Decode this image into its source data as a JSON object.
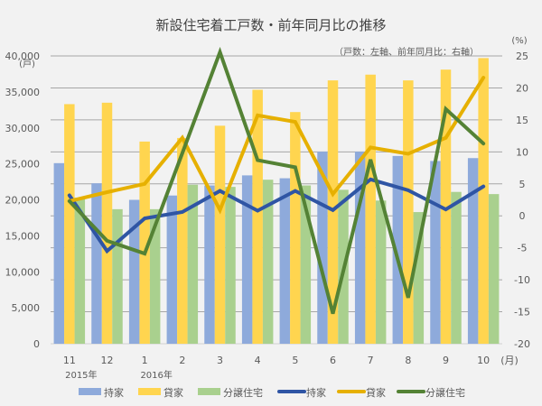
{
  "chart_data": {
    "type": "bar+line",
    "title": "新設住宅着工戸数・前年同月比の推移",
    "subtitle": "（戸数：左軸、前年同月比：右軸）",
    "ylabel_left": "(戸)",
    "ylabel_right": "(%)",
    "x_unit": "(月)",
    "categories": [
      "11",
      "12",
      "1",
      "2",
      "3",
      "4",
      "5",
      "6",
      "7",
      "8",
      "9",
      "10"
    ],
    "year_labels": [
      {
        "index": 0,
        "label": "2015年"
      },
      {
        "index": 2,
        "label": "2016年"
      }
    ],
    "ylim_left": [
      0,
      40000
    ],
    "yticks_left": [
      "0",
      "5,000",
      "10,000",
      "15,000",
      "20,000",
      "25,000",
      "30,000",
      "35,000",
      "40,000"
    ],
    "ylim_right": [
      -20,
      25
    ],
    "yticks_right": [
      "-20",
      "-15",
      "-10",
      "-5",
      "0",
      "5",
      "10",
      "15",
      "20",
      "25"
    ],
    "grid": true,
    "legend_position": "bottom",
    "bar_series": [
      {
        "name": "持家",
        "color": "#8eaadb",
        "values": [
          25100,
          22300,
          20000,
          20600,
          22000,
          23400,
          23000,
          26700,
          26700,
          26100,
          25400,
          25800
        ]
      },
      {
        "name": "貸家",
        "color": "#ffd54f",
        "values": [
          33300,
          33500,
          28100,
          28600,
          30300,
          35300,
          32200,
          36600,
          37400,
          36600,
          38100,
          39700
        ]
      },
      {
        "name": "分譲住宅",
        "color": "#a9d08e",
        "values": [
          20300,
          18700,
          18700,
          22100,
          21800,
          22800,
          22000,
          21400,
          19900,
          18300,
          21100,
          20800
        ]
      }
    ],
    "line_series": [
      {
        "name": "持家",
        "color": "#2f55a4",
        "values": [
          3.2,
          -5.5,
          -0.4,
          0.6,
          3.9,
          0.8,
          3.9,
          0.9,
          5.7,
          4.0,
          1.0,
          4.6
        ]
      },
      {
        "name": "貸家",
        "color": "#e6b000",
        "values": [
          2.3,
          3.7,
          5.0,
          12.2,
          0.9,
          15.7,
          14.7,
          3.4,
          10.7,
          9.7,
          12.2,
          21.6
        ]
      },
      {
        "name": "分譲住宅",
        "color": "#548235",
        "values": [
          2.3,
          -3.9,
          -5.9,
          9.8,
          25.6,
          8.7,
          7.6,
          -15.3,
          8.8,
          -12.8,
          16.7,
          11.3
        ]
      }
    ]
  }
}
